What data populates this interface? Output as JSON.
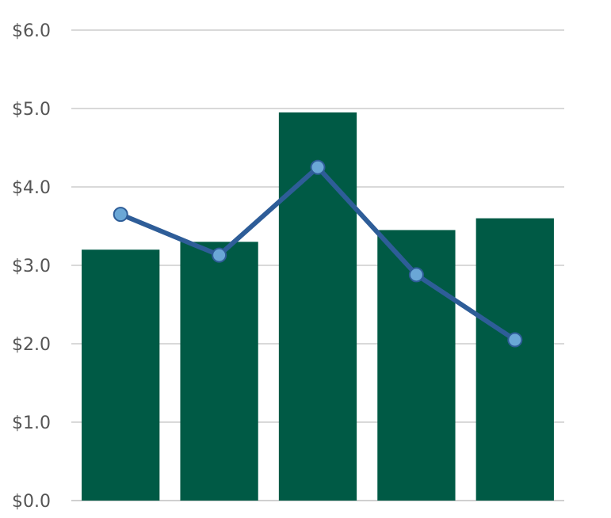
{
  "chart_data": {
    "type": "bar",
    "categories": [
      "",
      "",
      "",
      "",
      ""
    ],
    "ylim": [
      0,
      6
    ],
    "yticks": [
      0,
      1,
      2,
      3,
      4,
      5,
      6
    ],
    "ytick_labels": [
      "$0.0",
      "$1.0",
      "$2.0",
      "$3.0",
      "$4.0",
      "$5.0",
      "$6.0"
    ],
    "grid": true,
    "series": [
      {
        "type": "bar",
        "values": [
          3.2,
          3.3,
          4.95,
          3.45,
          3.6
        ],
        "color": "#005a45"
      },
      {
        "type": "line",
        "values": [
          3.65,
          3.13,
          4.25,
          2.88,
          2.05
        ],
        "color": "#2e5d98",
        "marker_color": "#6aa7d6"
      }
    ]
  }
}
